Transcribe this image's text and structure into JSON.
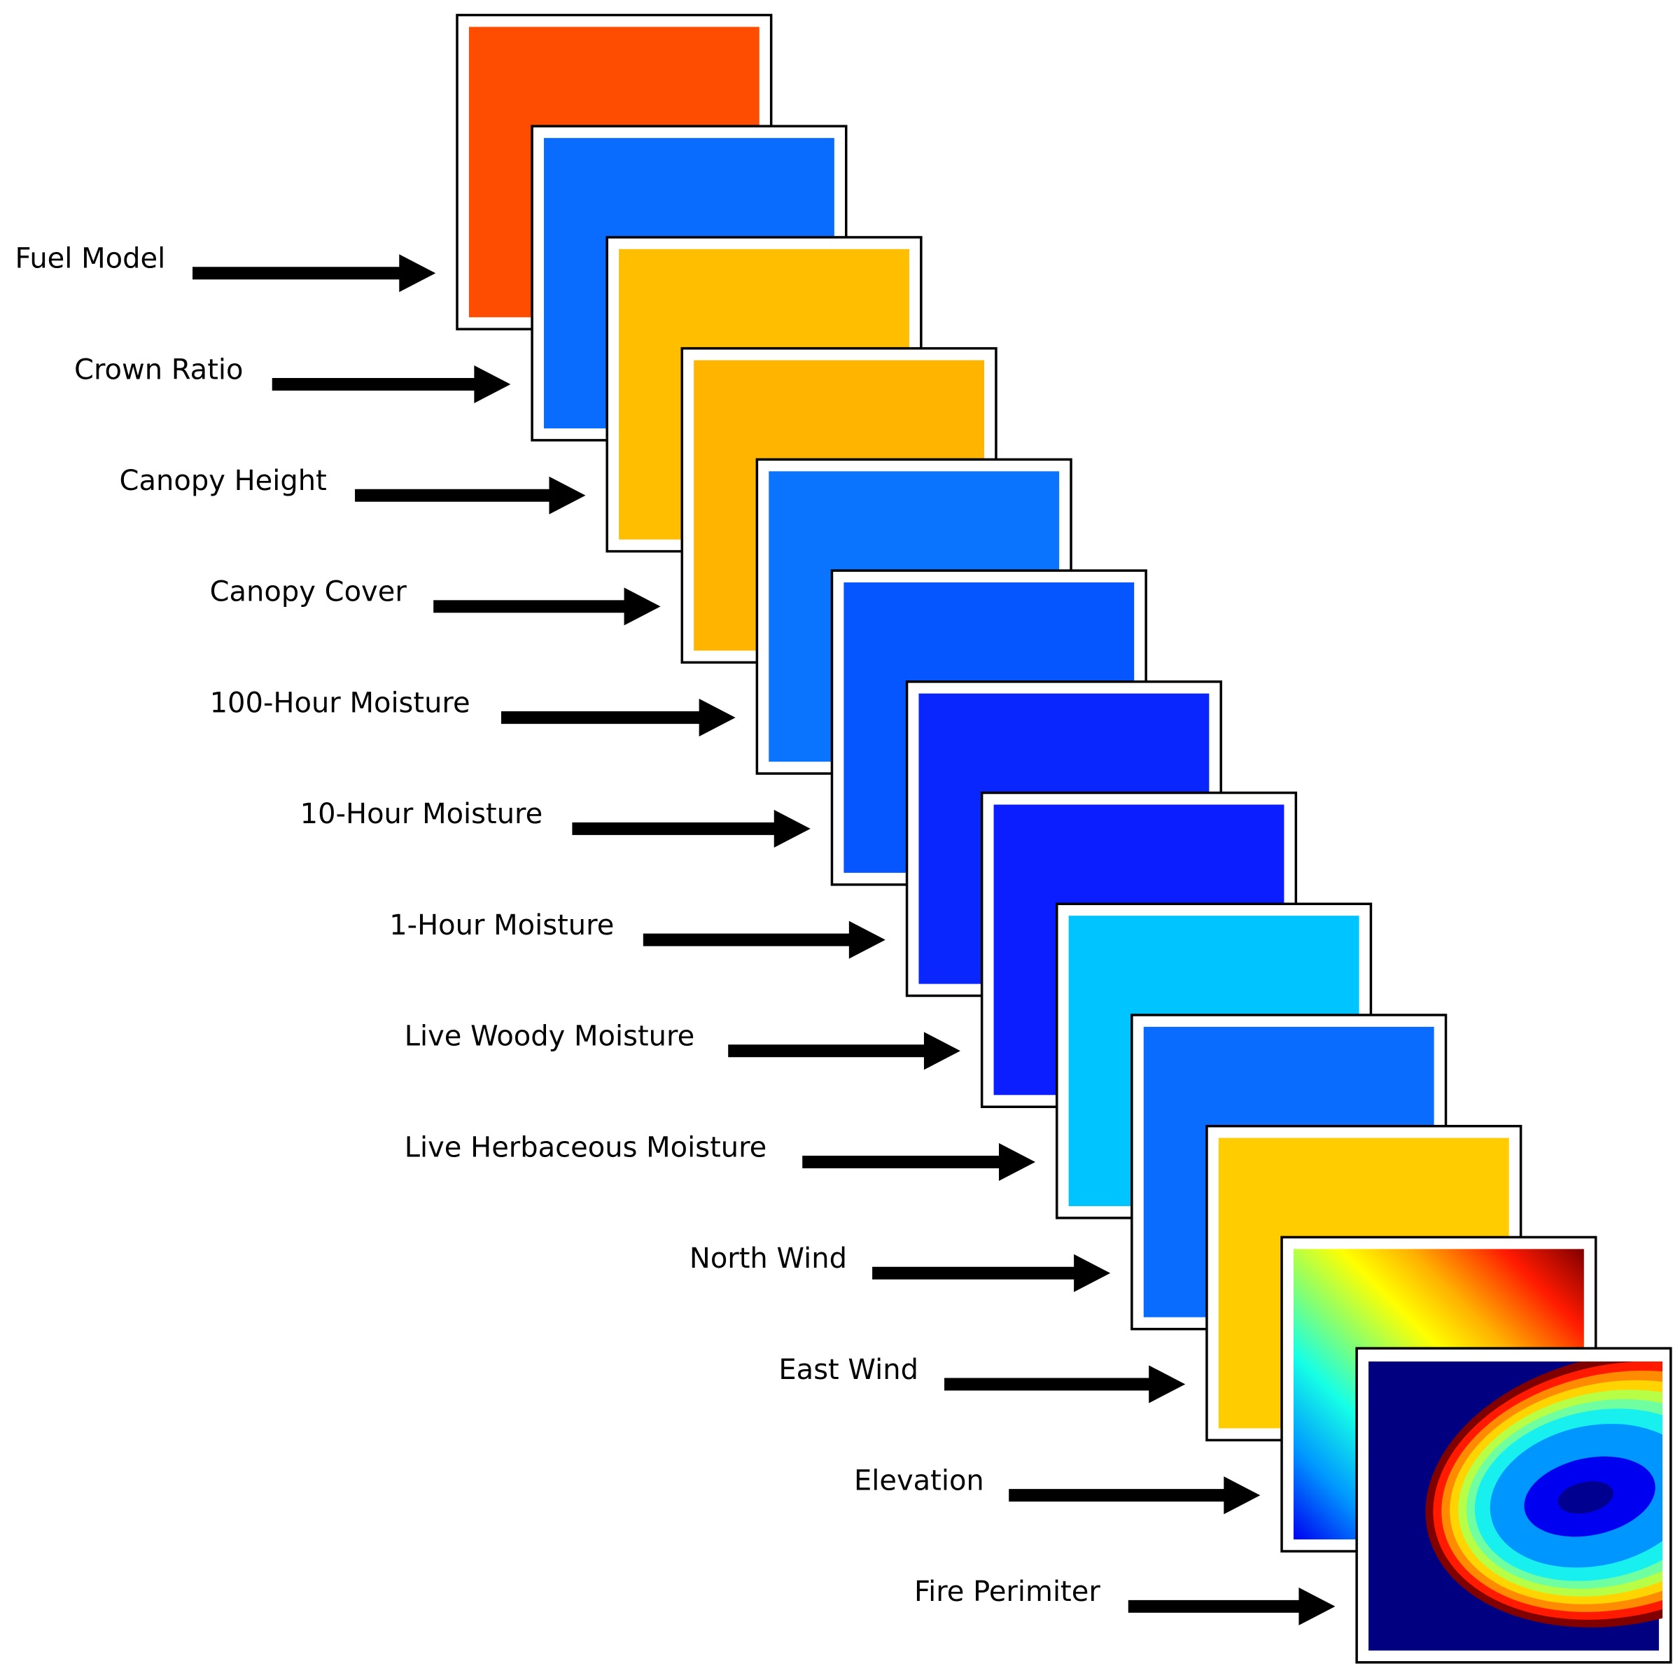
{
  "layers": [
    {
      "label": "Fuel Model",
      "fill": "#ff4d00"
    },
    {
      "label": "Crown Ratio",
      "fill": "#0a6cff"
    },
    {
      "label": "Canopy Height",
      "fill": "#ffbe00"
    },
    {
      "label": "Canopy Cover",
      "fill": "#ffb400"
    },
    {
      "label": "100-Hour Moisture",
      "fill": "#0a74ff"
    },
    {
      "label": "10-Hour Moisture",
      "fill": "#0656ff"
    },
    {
      "label": "1-Hour Moisture",
      "fill": "#0926ff"
    },
    {
      "label": "Live Woody Moisture",
      "fill": "#0a1eff"
    },
    {
      "label": "Live Herbaceous Moisture",
      "fill": "#00c4ff"
    },
    {
      "label": "North Wind",
      "fill": "#0a6cff"
    },
    {
      "label": "East Wind",
      "fill": "#ffcc00"
    },
    {
      "label": "Elevation",
      "fill": "elevation-gradient"
    },
    {
      "label": "Fire Perimiter",
      "fill": "fire-perimeter-map"
    }
  ]
}
